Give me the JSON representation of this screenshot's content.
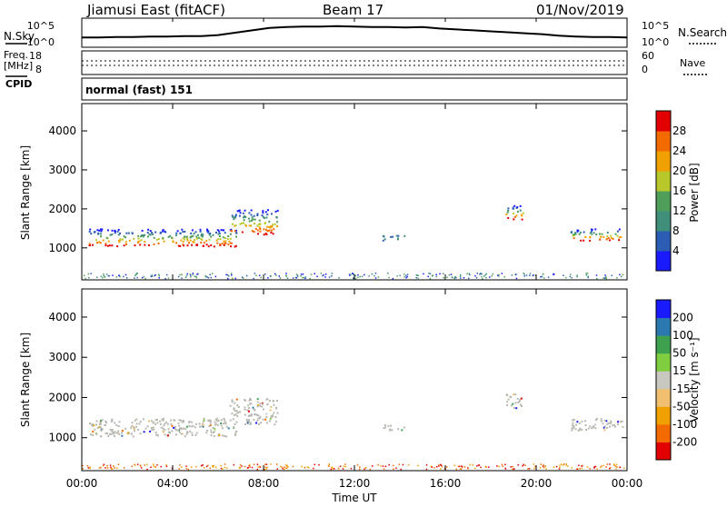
{
  "header": {
    "station": "Jiamusi East (fitACF)",
    "beam": "Beam 17",
    "date": "01/Nov/2019"
  },
  "noise_panel": {
    "left_label": "N.Sky",
    "right_label": "N.Search",
    "ticks": [
      "10^5",
      "10^0"
    ],
    "series_values_log10": [
      1.3,
      1.3,
      1.4,
      1.4,
      1.5,
      1.5,
      1.6,
      1.6,
      1.8,
      2.3,
      2.8,
      3.3,
      3.5,
      3.6,
      3.6,
      3.7,
      3.6,
      3.5,
      3.5,
      3.4,
      3.5,
      3.2,
      3.0,
      2.8,
      2.6,
      2.4,
      2.2,
      2.0,
      1.7,
      1.5,
      1.4,
      1.4,
      1.3
    ]
  },
  "freq_panel": {
    "left_label": "Freq.",
    "left_unit": "[MHz]",
    "left_ticks": [
      "18",
      "8"
    ],
    "right_label": "Nave",
    "right_ticks": [
      "60",
      "0"
    ],
    "cpid_label": "CPID"
  },
  "cpid_text": "normal (fast) 151",
  "x_axis": {
    "label": "Time UT",
    "ticks": [
      "00:00",
      "04:00",
      "08:00",
      "12:00",
      "16:00",
      "20:00",
      "00:00"
    ]
  },
  "colors": {
    "power_scale": [
      "#1a1aff",
      "#2b5db5",
      "#3f8f7a",
      "#4f9f5a",
      "#b8c82a",
      "#f0a000",
      "#f26a00",
      "#e30000"
    ],
    "velocity_scale": [
      "#e30000",
      "#f26a00",
      "#f0a000",
      "#f0c070",
      "#c8c8c0",
      "#7fce3f",
      "#3fa050",
      "#2a7ab0",
      "#1a1aff"
    ],
    "ground_scatter": "#b8b8b0"
  },
  "chart_data": [
    {
      "type": "heatmap",
      "title": "",
      "xlabel": "",
      "ylabel": "Slant Range [km]",
      "y_ticks": [
        "1000",
        "2000",
        "3000",
        "4000"
      ],
      "xlim_hours": [
        0,
        24
      ],
      "ylim_km": [
        180,
        4700
      ],
      "colorbar": {
        "label": "Power [dB]",
        "ticks": [
          "4",
          "8",
          "12",
          "16",
          "20",
          "24",
          "28"
        ]
      },
      "regions": [
        {
          "t_start": 0.3,
          "t_end": 6.8,
          "r_low": 1050,
          "r_high": 1500,
          "level": "high"
        },
        {
          "t_start": 6.5,
          "t_end": 8.6,
          "r_low": 1350,
          "r_high": 2000,
          "level": "high"
        },
        {
          "t_start": 18.6,
          "t_end": 19.4,
          "r_low": 1750,
          "r_high": 2100,
          "level": "high"
        },
        {
          "t_start": 21.5,
          "t_end": 23.8,
          "r_low": 1200,
          "r_high": 1500,
          "level": "high"
        },
        {
          "t_start": 13.2,
          "t_end": 14.2,
          "r_low": 1200,
          "r_high": 1350,
          "level": "low"
        }
      ]
    },
    {
      "type": "heatmap",
      "title": "",
      "xlabel": "Time UT",
      "ylabel": "Slant Range [km]",
      "y_ticks": [
        "1000",
        "2000",
        "3000",
        "4000"
      ],
      "xlim_hours": [
        0,
        24
      ],
      "ylim_km": [
        180,
        4700
      ],
      "colorbar": {
        "label": "Velocity [m s⁻¹]",
        "ticks": [
          "200",
          "100",
          "50",
          "15",
          "-15",
          "-50",
          "-100",
          "-200"
        ]
      },
      "note_free": true
    }
  ]
}
